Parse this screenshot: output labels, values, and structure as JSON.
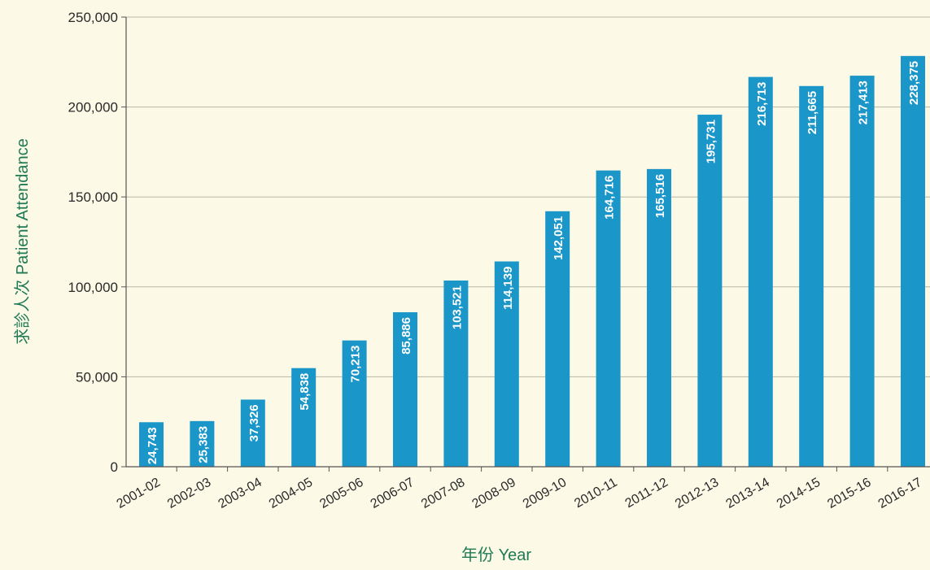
{
  "colors": {
    "background": "#fcf9e6",
    "bar": "#1a96c8",
    "bar_label": "#ffffff",
    "grid": "#b8b8a8",
    "axis": "#555555",
    "tick_text": "#2a2a2a",
    "axis_title": "#1f7a55"
  },
  "chart_data": {
    "type": "bar",
    "title": "",
    "xlabel": "年份 Year",
    "ylabel": "求診人次 Patient Attendance",
    "ylim": [
      0,
      250000
    ],
    "yticks": [
      0,
      50000,
      100000,
      150000,
      200000,
      250000
    ],
    "ytick_labels": [
      "0",
      "50,000",
      "100,000",
      "150,000",
      "200,000",
      "250,000"
    ],
    "grid": true,
    "categories": [
      "2001-02",
      "2002-03",
      "2003-04",
      "2004-05",
      "2005-06",
      "2006-07",
      "2007-08",
      "2008-09",
      "2009-10",
      "2010-11",
      "2011-12",
      "2012-13",
      "2013-14",
      "2014-15",
      "2015-16",
      "2016-17"
    ],
    "values": [
      24743,
      25383,
      37326,
      54838,
      70213,
      85886,
      103521,
      114139,
      142051,
      164716,
      165516,
      195731,
      216713,
      211665,
      217413,
      228375
    ],
    "data_labels": [
      "24,743",
      "25,383",
      "37,326",
      "54,838",
      "70,213",
      "85,886",
      "103,521",
      "114,139",
      "142,051",
      "164,716",
      "165,516",
      "195,731",
      "216,713",
      "211,665",
      "217,413",
      "228,375"
    ]
  }
}
